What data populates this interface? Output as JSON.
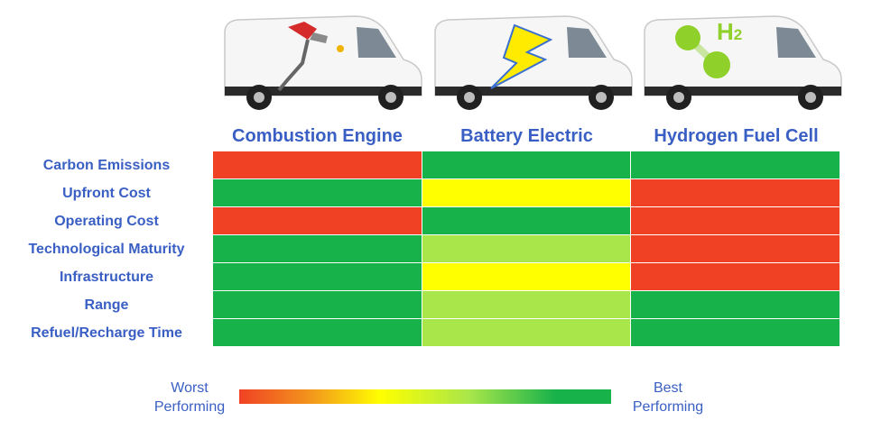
{
  "colors": {
    "worst": "#f04124",
    "yellow": "#ffff00",
    "light_green": "#a8e64a",
    "best": "#18b24a",
    "text": "#3a5fc4"
  },
  "vans": [
    {
      "icon": "fuel-nozzle-icon"
    },
    {
      "icon": "lightning-bolt-icon"
    },
    {
      "icon": "h2-molecule-icon",
      "symbol": "H",
      "subscript": "2"
    }
  ],
  "chart_data": {
    "type": "heatmap",
    "columns": [
      "Combustion Engine",
      "Battery Electric",
      "Hydrogen Fuel Cell"
    ],
    "rows": [
      "Carbon Emissions",
      "Upfront Cost",
      "Operating Cost",
      "Technological Maturity",
      "Infrastructure",
      "Range",
      "Refuel/Recharge Time"
    ],
    "scale": [
      "worst",
      "yellow",
      "light_green",
      "best"
    ],
    "ratings": [
      [
        "worst",
        "best",
        "best"
      ],
      [
        "best",
        "yellow",
        "worst"
      ],
      [
        "worst",
        "best",
        "worst"
      ],
      [
        "best",
        "light_green",
        "worst"
      ],
      [
        "best",
        "yellow",
        "worst"
      ],
      [
        "best",
        "light_green",
        "best"
      ],
      [
        "best",
        "light_green",
        "best"
      ]
    ]
  },
  "legend": {
    "worst_line1": "Worst",
    "worst_line2": "Performing",
    "best_line1": "Best",
    "best_line2": "Performing"
  }
}
